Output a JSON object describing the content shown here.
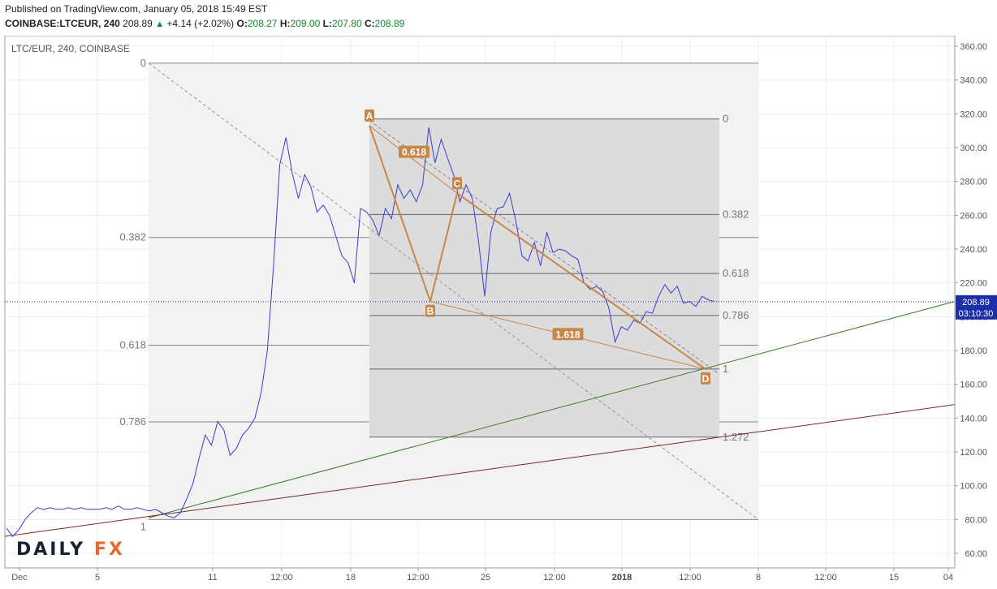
{
  "header": {
    "published": "Published on TradingView.com, January 05, 2018 15:49 EST",
    "symbol": "COINBASE:LTCEUR, 240",
    "last": "208.89",
    "change": "+4.14 (+2.02%)",
    "open_label": "O:",
    "open": "208.27",
    "high_label": "H:",
    "high": "209.00",
    "low_label": "L:",
    "low": "207.80",
    "close_label": "C:",
    "close": "208.89"
  },
  "chart_data": {
    "type": "line",
    "symbol_label": "LTC/EUR, 240, COINBASE",
    "y_ticks": [
      60,
      80,
      100,
      120,
      140,
      160,
      180,
      200,
      220,
      240,
      260,
      280,
      300,
      320,
      340,
      360
    ],
    "ylim": [
      52,
      368
    ],
    "x_tick_labels": [
      "Dec",
      "5",
      "11",
      "12:00",
      "18",
      "12:00",
      "25",
      "12:00",
      "2018",
      "12:00",
      "8",
      "12:00",
      "15",
      "04"
    ],
    "series": [
      {
        "values": [
          75,
          70,
          74,
          80,
          84,
          87,
          86,
          87,
          86,
          86,
          87,
          86,
          87,
          86,
          86,
          86,
          87,
          86,
          88,
          86,
          86,
          87,
          86,
          85,
          86,
          84,
          82,
          81,
          84,
          92,
          101,
          116,
          130,
          124,
          138,
          133,
          118,
          122,
          130,
          134,
          140,
          155,
          180,
          230,
          290,
          306,
          285,
          270,
          284,
          277,
          262,
          266,
          260,
          248,
          236,
          232,
          220,
          264,
          262,
          257,
          248,
          264,
          258,
          278,
          270,
          275,
          268,
          278,
          312,
          291,
          305,
          294,
          284,
          268,
          278,
          270,
          245,
          212,
          250,
          264,
          265,
          273,
          257,
          236,
          233,
          244,
          230,
          250,
          238,
          240,
          239,
          236,
          234,
          220,
          216,
          218,
          215,
          205,
          185,
          194,
          192,
          198,
          196,
          203,
          202,
          212,
          219,
          214,
          218,
          208,
          209,
          206,
          212,
          210,
          208.89
        ]
      }
    ],
    "current_price_label": "208.89",
    "countdown_label": "03:10:30",
    "fib_retracement_large": {
      "levels": [
        "0",
        "0.382",
        "0.618",
        "0.786",
        "1"
      ]
    },
    "fib_retracement_small": {
      "levels": [
        "0",
        "0.382",
        "0.618",
        "0.786",
        "1",
        "1.272"
      ]
    },
    "abcd_pattern": {
      "points": [
        {
          "label": "A",
          "value": 313
        },
        {
          "label": "B",
          "value": 209
        },
        {
          "label": "C",
          "value": 273
        },
        {
          "label": "D",
          "value": 169
        }
      ],
      "ratios": [
        "0.618",
        "1.618"
      ]
    },
    "colors": {
      "price_line": "#3b3bd6",
      "pattern": "#c8874a",
      "pattern_label_bg": "#c8874a",
      "green_trendline": "#3d7a2c",
      "red_trendline": "#7a2a1e",
      "price_tag_bg": "#1d2ea8"
    }
  },
  "logo": {
    "text": "DAILYFX"
  }
}
